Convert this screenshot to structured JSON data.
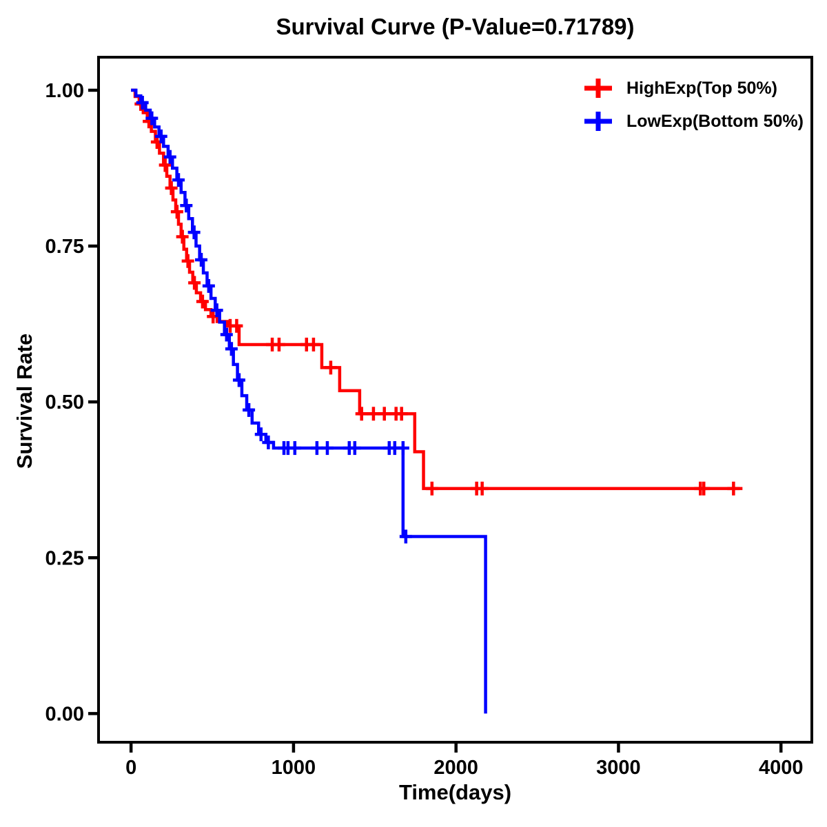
{
  "chart_data": {
    "type": "line",
    "variant": "kaplan-meier-step-survival",
    "title": "Survival Curve (P-Value=0.71789)",
    "xlabel": "Time(days)",
    "ylabel": "Survival Rate",
    "x_ticks": [
      0,
      1000,
      2000,
      3000,
      4000
    ],
    "y_ticks": [
      "0.00",
      "0.25",
      "0.50",
      "0.75",
      "1.00"
    ],
    "xlim": [
      -200,
      4190
    ],
    "ylim": [
      -0.046,
      1.053
    ],
    "grid": false,
    "legend_position": "top-right",
    "axis_color": "#000000",
    "series": [
      {
        "name": "HighExp(Top 50%)",
        "color": "#FF0000",
        "steps": [
          [
            0,
            1.0
          ],
          [
            25,
            0.99
          ],
          [
            50,
            0.978
          ],
          [
            75,
            0.964
          ],
          [
            100,
            0.95
          ],
          [
            125,
            0.934
          ],
          [
            150,
            0.917
          ],
          [
            175,
            0.899
          ],
          [
            200,
            0.88
          ],
          [
            220,
            0.862
          ],
          [
            240,
            0.843
          ],
          [
            258,
            0.824
          ],
          [
            275,
            0.805
          ],
          [
            292,
            0.785
          ],
          [
            308,
            0.765
          ],
          [
            325,
            0.745
          ],
          [
            342,
            0.726
          ],
          [
            360,
            0.708
          ],
          [
            380,
            0.691
          ],
          [
            402,
            0.675
          ],
          [
            428,
            0.661
          ],
          [
            458,
            0.648
          ],
          [
            492,
            0.637
          ],
          [
            530,
            0.629
          ],
          [
            593,
            0.622
          ],
          [
            665,
            0.592
          ],
          [
            1174,
            0.555
          ],
          [
            1284,
            0.518
          ],
          [
            1407,
            0.481
          ],
          [
            1746,
            0.42
          ],
          [
            1800,
            0.361
          ],
          [
            3763,
            0.361
          ]
        ],
        "censors": [
          [
            60,
            0.978
          ],
          [
            110,
            0.95
          ],
          [
            160,
            0.917
          ],
          [
            210,
            0.88
          ],
          [
            248,
            0.843
          ],
          [
            283,
            0.805
          ],
          [
            316,
            0.765
          ],
          [
            350,
            0.726
          ],
          [
            390,
            0.691
          ],
          [
            440,
            0.661
          ],
          [
            505,
            0.637
          ],
          [
            610,
            0.622
          ],
          [
            650,
            0.622
          ],
          [
            869,
            0.592
          ],
          [
            911,
            0.592
          ],
          [
            1080,
            0.592
          ],
          [
            1123,
            0.592
          ],
          [
            1229,
            0.555
          ],
          [
            1419,
            0.481
          ],
          [
            1492,
            0.481
          ],
          [
            1559,
            0.481
          ],
          [
            1631,
            0.481
          ],
          [
            1665,
            0.481
          ],
          [
            1852,
            0.361
          ],
          [
            2127,
            0.361
          ],
          [
            2161,
            0.361
          ],
          [
            3504,
            0.361
          ],
          [
            3525,
            0.361
          ],
          [
            3708,
            0.361
          ]
        ]
      },
      {
        "name": "LowExp(Bottom 50%)",
        "color": "#0000FF",
        "steps": [
          [
            0,
            1.0
          ],
          [
            30,
            0.991
          ],
          [
            60,
            0.98
          ],
          [
            90,
            0.968
          ],
          [
            118,
            0.955
          ],
          [
            145,
            0.941
          ],
          [
            172,
            0.926
          ],
          [
            200,
            0.91
          ],
          [
            228,
            0.893
          ],
          [
            255,
            0.875
          ],
          [
            282,
            0.856
          ],
          [
            308,
            0.836
          ],
          [
            332,
            0.815
          ],
          [
            355,
            0.794
          ],
          [
            378,
            0.772
          ],
          [
            400,
            0.75
          ],
          [
            422,
            0.728
          ],
          [
            445,
            0.707
          ],
          [
            468,
            0.686
          ],
          [
            492,
            0.666
          ],
          [
            518,
            0.647
          ],
          [
            545,
            0.628
          ],
          [
            575,
            0.608
          ],
          [
            605,
            0.585
          ],
          [
            630,
            0.56
          ],
          [
            655,
            0.535
          ],
          [
            682,
            0.51
          ],
          [
            712,
            0.487
          ],
          [
            745,
            0.466
          ],
          [
            785,
            0.448
          ],
          [
            830,
            0.435
          ],
          [
            877,
            0.426
          ],
          [
            1674,
            0.284
          ],
          [
            2182,
            0.0
          ]
        ],
        "censors": [
          [
            70,
            0.98
          ],
          [
            128,
            0.955
          ],
          [
            185,
            0.926
          ],
          [
            240,
            0.893
          ],
          [
            292,
            0.856
          ],
          [
            340,
            0.815
          ],
          [
            388,
            0.772
          ],
          [
            432,
            0.728
          ],
          [
            478,
            0.686
          ],
          [
            528,
            0.647
          ],
          [
            588,
            0.608
          ],
          [
            618,
            0.585
          ],
          [
            665,
            0.535
          ],
          [
            725,
            0.487
          ],
          [
            800,
            0.448
          ],
          [
            845,
            0.435
          ],
          [
            941,
            0.426
          ],
          [
            966,
            0.426
          ],
          [
            1008,
            0.426
          ],
          [
            1144,
            0.426
          ],
          [
            1208,
            0.426
          ],
          [
            1343,
            0.426
          ],
          [
            1377,
            0.426
          ],
          [
            1589,
            0.426
          ],
          [
            1623,
            0.426
          ],
          [
            1674,
            0.426
          ],
          [
            1691,
            0.284
          ]
        ]
      }
    ]
  }
}
